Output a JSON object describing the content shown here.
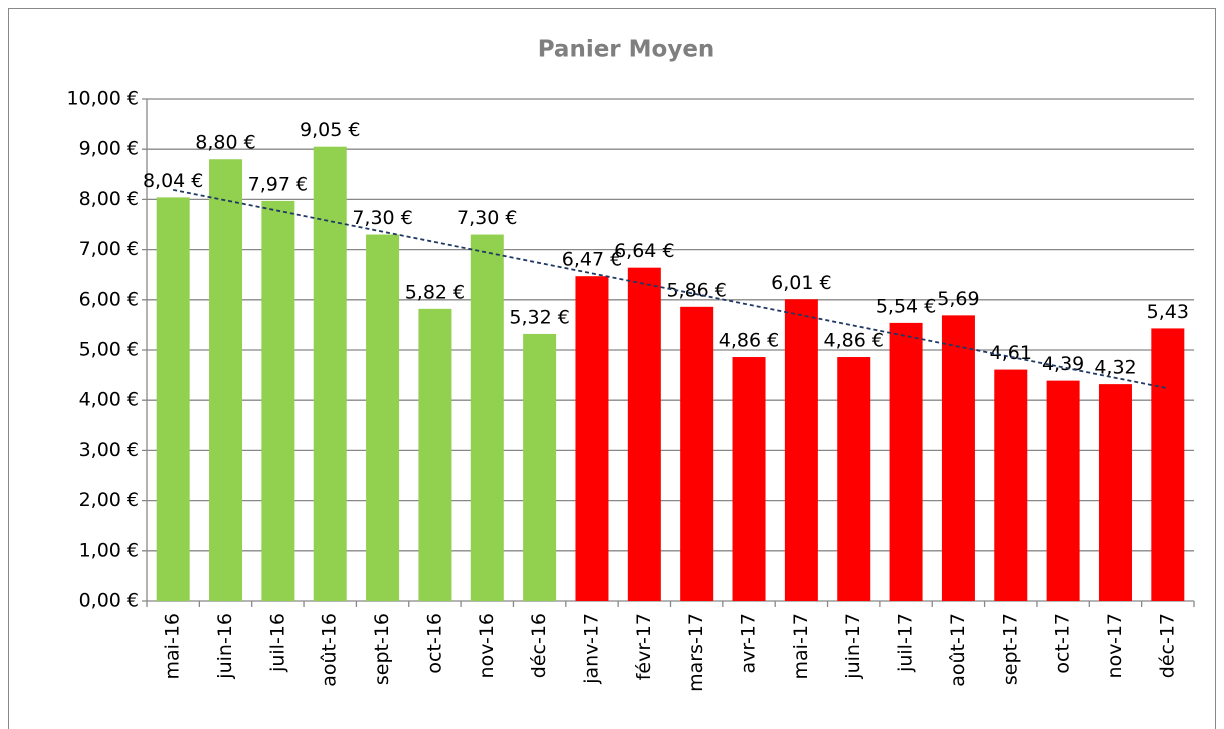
{
  "chart_data": {
    "type": "bar",
    "title": "Panier Moyen",
    "categories": [
      "mai-16",
      "juin-16",
      "juil-16",
      "août-16",
      "sept-16",
      "oct-16",
      "nov-16",
      "déc-16",
      "janv-17",
      "févr-17",
      "mars-17",
      "avr-17",
      "mai-17",
      "juin-17",
      "juil-17",
      "août-17",
      "sept-17",
      "oct-17",
      "nov-17",
      "déc-17"
    ],
    "values": [
      8.04,
      8.8,
      7.97,
      9.05,
      7.3,
      5.82,
      7.3,
      5.32,
      6.47,
      6.64,
      5.86,
      4.86,
      6.01,
      4.86,
      5.54,
      5.69,
      4.61,
      4.39,
      4.32,
      5.43
    ],
    "value_labels": [
      "8,04 €",
      "8,80 €",
      "7,97 €",
      "9,05 €",
      "7,30 €",
      "5,82 €",
      "7,30 €",
      "5,32 €",
      "6,47 €",
      "6,64 €",
      "5,86 €",
      "4,86 €",
      "6,01 €",
      "4,86 €",
      "5,54 €",
      "5,69",
      "4,61",
      "4,39",
      "4,32",
      "5,43"
    ],
    "colors": [
      "#92d050",
      "#92d050",
      "#92d050",
      "#92d050",
      "#92d050",
      "#92d050",
      "#92d050",
      "#92d050",
      "#ff0000",
      "#ff0000",
      "#ff0000",
      "#ff0000",
      "#ff0000",
      "#ff0000",
      "#ff0000",
      "#ff0000",
      "#ff0000",
      "#ff0000",
      "#ff0000",
      "#ff0000"
    ],
    "ylim": [
      0,
      10
    ],
    "yticks": [
      {
        "value": 0,
        "label": "0,00 €"
      },
      {
        "value": 1,
        "label": "1,00 €"
      },
      {
        "value": 2,
        "label": "2,00 €"
      },
      {
        "value": 3,
        "label": "3,00 €"
      },
      {
        "value": 4,
        "label": "4,00 €"
      },
      {
        "value": 5,
        "label": "5,00 €"
      },
      {
        "value": 6,
        "label": "6,00 €"
      },
      {
        "value": 7,
        "label": "7,00 €"
      },
      {
        "value": 8,
        "label": "8,00 €"
      },
      {
        "value": 9,
        "label": "9,00 €"
      },
      {
        "value": 10,
        "label": "10,00 €"
      }
    ],
    "grid": true,
    "trendline": true,
    "trendline_color": "#1f3864"
  }
}
